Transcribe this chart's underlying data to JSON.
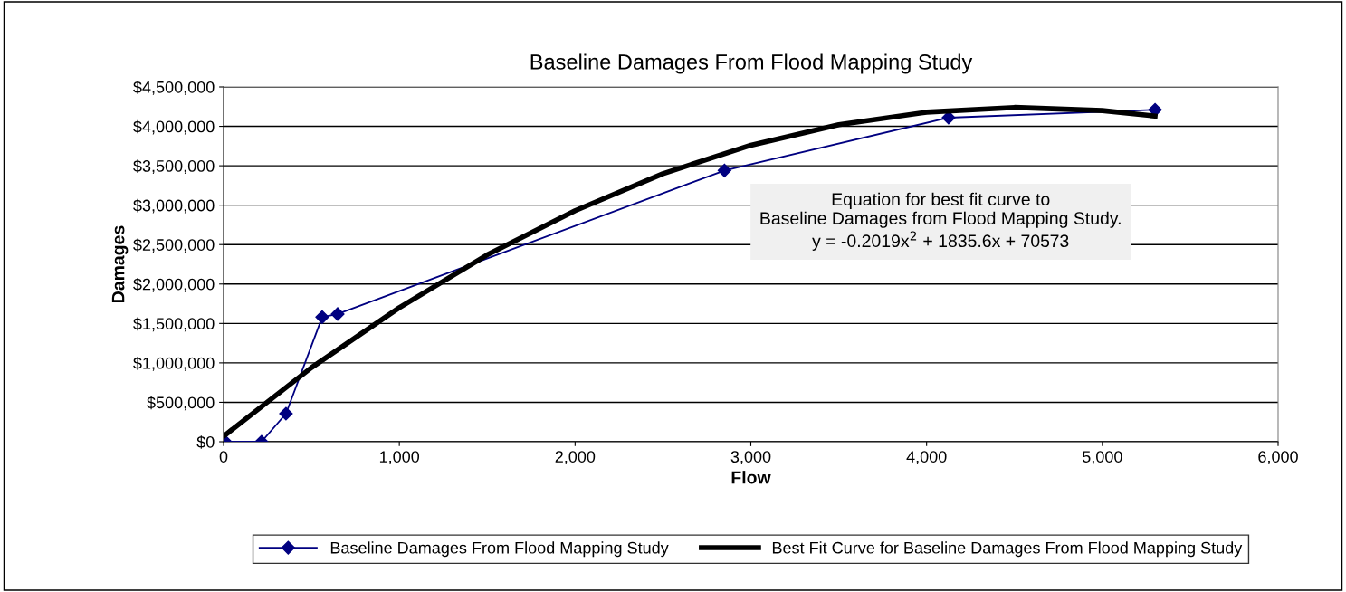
{
  "chart_data": {
    "type": "line",
    "title": "Baseline Damages From Flood Mapping Study",
    "xlabel": "Flow",
    "ylabel": "Damages",
    "xlim": [
      0,
      6000
    ],
    "xticks": [
      {
        "value": 0,
        "label": "0"
      },
      {
        "value": 1000,
        "label": "1,000"
      },
      {
        "value": 2000,
        "label": "2,000"
      },
      {
        "value": 3000,
        "label": "3,000"
      },
      {
        "value": 4000,
        "label": "4,000"
      },
      {
        "value": 5000,
        "label": "5,000"
      },
      {
        "value": 6000,
        "label": "6,000"
      }
    ],
    "ylim": [
      0,
      4500000
    ],
    "yticks": [
      {
        "value": 0,
        "label": "$0"
      },
      {
        "value": 500000,
        "label": "$500,000"
      },
      {
        "value": 1000000,
        "label": "$1,000,000"
      },
      {
        "value": 1500000,
        "label": "$1,500,000"
      },
      {
        "value": 2000000,
        "label": "$2,000,000"
      },
      {
        "value": 2500000,
        "label": "$2,500,000"
      },
      {
        "value": 3000000,
        "label": "$3,000,000"
      },
      {
        "value": 3500000,
        "label": "$3,500,000"
      },
      {
        "value": 4000000,
        "label": "$4,000,000"
      },
      {
        "value": 4500000,
        "label": "$4,500,000"
      }
    ],
    "grid": "y",
    "legend": "bottom",
    "annotations": [
      "Equation for best fit curve to\nBaseline Damages from Flood Mapping Study.\ny = -0.2019x$^{2}$ + 1835.6x + 70573"
    ],
    "series": [
      {
        "name": "Baseline Damages From Flood Mapping Study",
        "color": "#000080",
        "marker": "diamond",
        "x": [
          10,
          216,
          355,
          561,
          649,
          2850,
          4125,
          5300
        ],
        "values": [
          0,
          0,
          356000,
          1580000,
          1620000,
          3440000,
          4110000,
          4210000
        ]
      },
      {
        "name": "Best Fit Curve for Baseline Damages From Flood Mapping Study",
        "color": "#000000",
        "marker": "none",
        "x": [
          0,
          500,
          1000,
          1500,
          2000,
          2500,
          3000,
          3500,
          4000,
          4500,
          5000,
          5300
        ],
        "values": [
          70000,
          940000,
          1700000,
          2370000,
          2930000,
          3400000,
          3760000,
          4020000,
          4180000,
          4240000,
          4200000,
          4130000
        ]
      }
    ]
  }
}
